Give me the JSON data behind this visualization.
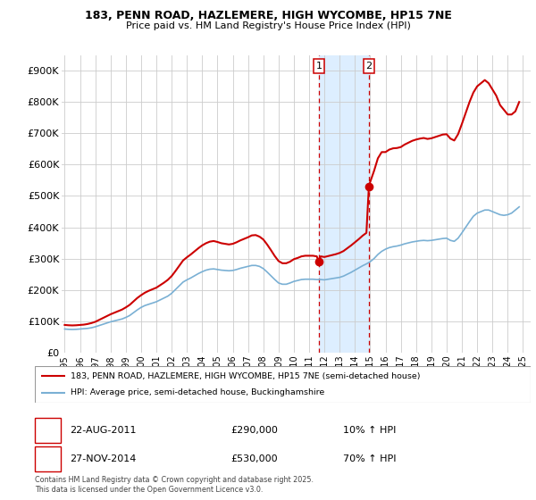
{
  "title1": "183, PENN ROAD, HAZLEMERE, HIGH WYCOMBE, HP15 7NE",
  "title2": "Price paid vs. HM Land Registry's House Price Index (HPI)",
  "legend_line1": "183, PENN ROAD, HAZLEMERE, HIGH WYCOMBE, HP15 7NE (semi-detached house)",
  "legend_line2": "HPI: Average price, semi-detached house, Buckinghamshire",
  "footnote": "Contains HM Land Registry data © Crown copyright and database right 2025.\nThis data is licensed under the Open Government Licence v3.0.",
  "sale1_date": "22-AUG-2011",
  "sale1_price": 290000,
  "sale1_hpi": "10% ↑ HPI",
  "sale2_date": "27-NOV-2014",
  "sale2_price": 530000,
  "sale2_hpi": "70% ↑ HPI",
  "sale1_x": 2011.64,
  "sale2_x": 2014.91,
  "line_color_red": "#cc0000",
  "line_color_blue": "#7ab0d4",
  "shading_color": "#ddeeff",
  "grid_color": "#cccccc",
  "background_color": "#ffffff",
  "ylim": [
    0,
    950000
  ],
  "xlim": [
    1994.8,
    2025.5
  ],
  "yticks": [
    0,
    100000,
    200000,
    300000,
    400000,
    500000,
    600000,
    700000,
    800000,
    900000
  ],
  "ytick_labels": [
    "£0",
    "£100K",
    "£200K",
    "£300K",
    "£400K",
    "£500K",
    "£600K",
    "£700K",
    "£800K",
    "£900K"
  ],
  "hpi_data": {
    "years": [
      1995.0,
      1995.25,
      1995.5,
      1995.75,
      1996.0,
      1996.25,
      1996.5,
      1996.75,
      1997.0,
      1997.25,
      1997.5,
      1997.75,
      1998.0,
      1998.25,
      1998.5,
      1998.75,
      1999.0,
      1999.25,
      1999.5,
      1999.75,
      2000.0,
      2000.25,
      2000.5,
      2000.75,
      2001.0,
      2001.25,
      2001.5,
      2001.75,
      2002.0,
      2002.25,
      2002.5,
      2002.75,
      2003.0,
      2003.25,
      2003.5,
      2003.75,
      2004.0,
      2004.25,
      2004.5,
      2004.75,
      2005.0,
      2005.25,
      2005.5,
      2005.75,
      2006.0,
      2006.25,
      2006.5,
      2006.75,
      2007.0,
      2007.25,
      2007.5,
      2007.75,
      2008.0,
      2008.25,
      2008.5,
      2008.75,
      2009.0,
      2009.25,
      2009.5,
      2009.75,
      2010.0,
      2010.25,
      2010.5,
      2010.75,
      2011.0,
      2011.25,
      2011.5,
      2011.75,
      2012.0,
      2012.25,
      2012.5,
      2012.75,
      2013.0,
      2013.25,
      2013.5,
      2013.75,
      2014.0,
      2014.25,
      2014.5,
      2014.75,
      2015.0,
      2015.25,
      2015.5,
      2015.75,
      2016.0,
      2016.25,
      2016.5,
      2016.75,
      2017.0,
      2017.25,
      2017.5,
      2017.75,
      2018.0,
      2018.25,
      2018.5,
      2018.75,
      2019.0,
      2019.25,
      2019.5,
      2019.75,
      2020.0,
      2020.25,
      2020.5,
      2020.75,
      2021.0,
      2021.25,
      2021.5,
      2021.75,
      2022.0,
      2022.25,
      2022.5,
      2022.75,
      2023.0,
      2023.25,
      2023.5,
      2023.75,
      2024.0,
      2024.25,
      2024.5,
      2024.75
    ],
    "values": [
      75000,
      74000,
      73500,
      74000,
      75000,
      76000,
      77000,
      79000,
      82000,
      86000,
      90000,
      94000,
      98000,
      101000,
      104000,
      107000,
      112000,
      118000,
      127000,
      136000,
      144000,
      150000,
      154000,
      158000,
      162000,
      168000,
      174000,
      180000,
      189000,
      201000,
      213000,
      225000,
      232000,
      238000,
      245000,
      252000,
      258000,
      263000,
      266000,
      267000,
      265000,
      263000,
      262000,
      261000,
      262000,
      265000,
      269000,
      272000,
      275000,
      278000,
      278000,
      275000,
      268000,
      257000,
      245000,
      233000,
      222000,
      218000,
      218000,
      222000,
      227000,
      230000,
      233000,
      234000,
      234000,
      234000,
      233000,
      233000,
      232000,
      234000,
      236000,
      238000,
      240000,
      244000,
      250000,
      256000,
      263000,
      270000,
      277000,
      283000,
      290000,
      300000,
      313000,
      323000,
      330000,
      335000,
      338000,
      340000,
      343000,
      347000,
      350000,
      353000,
      355000,
      357000,
      358000,
      357000,
      358000,
      360000,
      362000,
      364000,
      365000,
      358000,
      355000,
      365000,
      382000,
      400000,
      418000,
      435000,
      445000,
      450000,
      455000,
      455000,
      450000,
      445000,
      440000,
      438000,
      440000,
      445000,
      455000,
      465000
    ]
  },
  "house_data": {
    "years": [
      1995.0,
      1995.25,
      1995.5,
      1995.75,
      1996.0,
      1996.25,
      1996.5,
      1996.75,
      1997.0,
      1997.25,
      1997.5,
      1997.75,
      1998.0,
      1998.25,
      1998.5,
      1998.75,
      1999.0,
      1999.25,
      1999.5,
      1999.75,
      2000.0,
      2000.25,
      2000.5,
      2000.75,
      2001.0,
      2001.25,
      2001.5,
      2001.75,
      2002.0,
      2002.25,
      2002.5,
      2002.75,
      2003.0,
      2003.25,
      2003.5,
      2003.75,
      2004.0,
      2004.25,
      2004.5,
      2004.75,
      2005.0,
      2005.25,
      2005.5,
      2005.75,
      2006.0,
      2006.25,
      2006.5,
      2006.75,
      2007.0,
      2007.25,
      2007.5,
      2007.75,
      2008.0,
      2008.25,
      2008.5,
      2008.75,
      2009.0,
      2009.25,
      2009.5,
      2009.75,
      2010.0,
      2010.25,
      2010.5,
      2010.75,
      2011.0,
      2011.25,
      2011.5,
      2011.64,
      2011.75,
      2012.0,
      2012.25,
      2012.5,
      2012.75,
      2013.0,
      2013.25,
      2013.5,
      2013.75,
      2014.0,
      2014.25,
      2014.5,
      2014.75,
      2014.91,
      2015.0,
      2015.25,
      2015.5,
      2015.75,
      2016.0,
      2016.25,
      2016.5,
      2016.75,
      2017.0,
      2017.25,
      2017.5,
      2017.75,
      2018.0,
      2018.25,
      2018.5,
      2018.75,
      2019.0,
      2019.25,
      2019.5,
      2019.75,
      2020.0,
      2020.25,
      2020.5,
      2020.75,
      2021.0,
      2021.25,
      2021.5,
      2021.75,
      2022.0,
      2022.25,
      2022.5,
      2022.75,
      2023.0,
      2023.25,
      2023.5,
      2023.75,
      2024.0,
      2024.25,
      2024.5,
      2024.75
    ],
    "values": [
      88000,
      87000,
      86500,
      87000,
      88000,
      89000,
      91000,
      94000,
      98000,
      104000,
      110000,
      116000,
      122000,
      127000,
      132000,
      137000,
      144000,
      152000,
      163000,
      174000,
      183000,
      191000,
      197000,
      202000,
      207000,
      215000,
      223000,
      232000,
      244000,
      260000,
      277000,
      294000,
      304000,
      313000,
      323000,
      333000,
      342000,
      349000,
      354000,
      356000,
      353000,
      349000,
      347000,
      345000,
      347000,
      352000,
      358000,
      363000,
      368000,
      374000,
      375000,
      370000,
      361000,
      345000,
      327000,
      308000,
      292000,
      285000,
      285000,
      290000,
      298000,
      302000,
      307000,
      309000,
      309000,
      309000,
      307000,
      290000,
      307000,
      305000,
      308000,
      311000,
      314000,
      318000,
      324000,
      333000,
      342000,
      352000,
      362000,
      373000,
      382000,
      530000,
      545000,
      580000,
      620000,
      640000,
      640000,
      648000,
      652000,
      653000,
      656000,
      664000,
      670000,
      676000,
      680000,
      683000,
      685000,
      682000,
      684000,
      688000,
      692000,
      696000,
      697000,
      683000,
      677000,
      697000,
      730000,
      765000,
      800000,
      830000,
      850000,
      860000,
      870000,
      860000,
      840000,
      820000,
      790000,
      775000,
      760000,
      760000,
      770000,
      800000
    ]
  }
}
